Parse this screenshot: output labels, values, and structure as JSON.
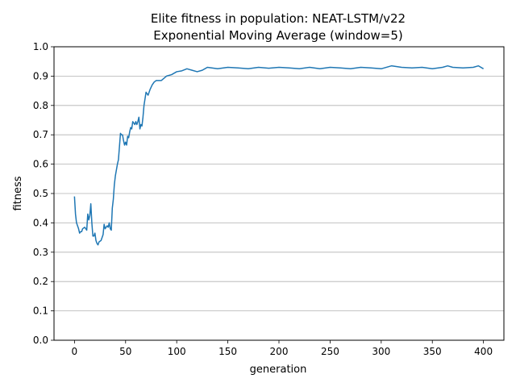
{
  "chart_data": {
    "type": "line",
    "title": "Elite fitness in population: NEAT-LSTM/v22",
    "subtitle": "Exponential Moving Average (window=5)",
    "xlabel": "generation",
    "ylabel": "fitness",
    "xlim": [
      -20,
      420
    ],
    "ylim": [
      0.0,
      1.0
    ],
    "x_ticks": [
      0,
      50,
      100,
      150,
      200,
      250,
      300,
      350,
      400
    ],
    "y_ticks": [
      0.0,
      0.1,
      0.2,
      0.3,
      0.4,
      0.5,
      0.6,
      0.7,
      0.8,
      0.9,
      1.0
    ],
    "x_tick_labels": [
      "0",
      "50",
      "100",
      "150",
      "200",
      "250",
      "300",
      "350",
      "400"
    ],
    "y_tick_labels": [
      "0.0",
      "0.1",
      "0.2",
      "0.3",
      "0.4",
      "0.5",
      "0.6",
      "0.7",
      "0.8",
      "0.9",
      "1.0"
    ],
    "grid": "horizontal",
    "colors": {
      "line": "#1f77b4",
      "grid": "#b0b0b0",
      "axis": "#000000"
    },
    "series": [
      {
        "x": [
          0,
          1,
          2,
          3,
          4,
          5,
          6,
          7,
          8,
          10,
          12,
          13,
          14,
          15,
          16,
          17,
          18,
          19,
          20,
          21,
          22,
          23,
          24,
          26,
          28,
          29,
          30,
          31,
          32,
          33,
          34,
          35,
          36,
          37,
          38,
          39,
          40,
          42,
          43,
          44,
          45,
          46,
          47,
          48,
          49,
          50,
          51,
          52,
          53,
          54,
          55,
          56,
          57,
          58,
          59,
          60,
          61,
          62,
          63,
          64,
          65,
          66,
          67,
          68,
          70,
          72,
          74,
          76,
          78,
          80,
          85,
          90,
          95,
          100,
          105,
          110,
          115,
          120,
          125,
          130,
          140,
          150,
          160,
          170,
          180,
          190,
          200,
          210,
          220,
          230,
          240,
          250,
          260,
          270,
          280,
          290,
          300,
          310,
          320,
          330,
          340,
          350,
          360,
          365,
          370,
          380,
          390,
          395,
          400
        ],
        "y": [
          0.49,
          0.43,
          0.4,
          0.39,
          0.38,
          0.365,
          0.37,
          0.37,
          0.38,
          0.385,
          0.375,
          0.43,
          0.41,
          0.425,
          0.465,
          0.4,
          0.355,
          0.355,
          0.365,
          0.34,
          0.33,
          0.325,
          0.335,
          0.34,
          0.36,
          0.395,
          0.38,
          0.385,
          0.39,
          0.385,
          0.4,
          0.38,
          0.375,
          0.45,
          0.48,
          0.53,
          0.56,
          0.6,
          0.615,
          0.66,
          0.705,
          0.7,
          0.7,
          0.68,
          0.665,
          0.675,
          0.665,
          0.695,
          0.69,
          0.71,
          0.725,
          0.72,
          0.745,
          0.74,
          0.735,
          0.745,
          0.735,
          0.745,
          0.76,
          0.72,
          0.735,
          0.73,
          0.76,
          0.8,
          0.845,
          0.835,
          0.855,
          0.87,
          0.88,
          0.885,
          0.885,
          0.9,
          0.905,
          0.915,
          0.918,
          0.925,
          0.92,
          0.915,
          0.92,
          0.93,
          0.925,
          0.93,
          0.928,
          0.925,
          0.93,
          0.927,
          0.93,
          0.928,
          0.925,
          0.93,
          0.925,
          0.93,
          0.928,
          0.925,
          0.93,
          0.928,
          0.925,
          0.935,
          0.93,
          0.928,
          0.93,
          0.925,
          0.93,
          0.935,
          0.93,
          0.928,
          0.93,
          0.935,
          0.925
        ]
      }
    ]
  }
}
